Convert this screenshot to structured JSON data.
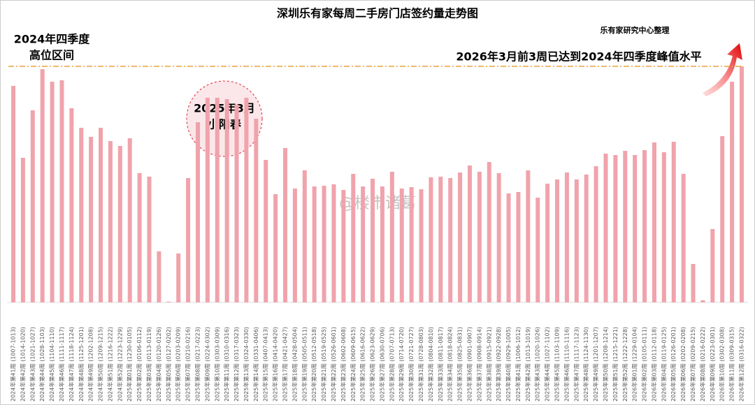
{
  "chart_data": {
    "type": "bar",
    "title": "深圳乐有家每周二手房门店签约量走势图",
    "source": "乐有家研究中心整理",
    "annotations": [
      "2024年四季度",
      "高位区间",
      "2026年3月前3周已达到2024年四季度峰值水平",
      "2025年3月",
      "小阳春",
      "@楼市诸葛"
    ],
    "color": "#f0a3ab",
    "reference_line": 338,
    "reference_color": "#e8a33a",
    "ylim": [
      0,
      345
    ],
    "categories": [
      "2024年第41周 (1007-1013)",
      "2024年第42周 (1014-1020)",
      "2024年第43周 (1021-1027)",
      "2024年第44周 (1028-1103)",
      "2024年第45周 (1104-1110)",
      "2024年第46周 (1111-1117)",
      "2024年第47周 (1118-1124)",
      "2024年第48周 (1125-1201)",
      "2024年第49周 (1202-1208)",
      "2024年第50周 (1209-1215)",
      "2024年第51周 (1216-1222)",
      "2024年第52周 (1223-1229)",
      "2025年第01周 (1230-0105)",
      "2025年第02周 (0106-0112)",
      "2025年第03周 (0113-0119)",
      "2025年第04周 (0120-0126)",
      "2025年第05周 (0127-0202)",
      "2025年第06周 (0203-0209)",
      "2025年第07周 (0210-0216)",
      "2025年第08周 (0217-0223)",
      "2025年第09周 (0224-0302)",
      "2025年第10周 (0303-0309)",
      "2025年第11周 (0310-0316)",
      "2025年第12周 (0317-0323)",
      "2025年第13周 (0324-0330)",
      "2025年第14周 (0331-0406)",
      "2025年第15周 (0407-0413)",
      "2025年第16周 (0414-0420)",
      "2025年第17周 (0421-0427)",
      "2025年第18周 (0428-0504)",
      "2025年第19周 (0505-0511)",
      "2025年第20周 (0512-0518)",
      "2025年第21周 (0519-0525)",
      "2025年第22周 (0526-0601)",
      "2025年第23周 (0602-0608)",
      "2025年第24周 (0609-0615)",
      "2025年第25周 (0616-0622)",
      "2025年第26周 (0623-0629)",
      "2025年第27周 (0630-0706)",
      "2025年第28周 (0707-0713)",
      "2025年第29周 (0714-0720)",
      "2025年第30周 (0721-0727)",
      "2025年第31周 (0728-0803)",
      "2025年第32周 (0804-0810)",
      "2025年第33周 (0811-0817)",
      "2025年第34周 (0818-0824)",
      "2025年第35周 (0825-0831)",
      "2025年第36周 (0901-0907)",
      "2025年第37周 (0908-0914)",
      "2025年第38周 (0915-0921)",
      "2025年第39周 (0922-0928)",
      "2025年第40周 (0929-1005)",
      "2025年第41周 (1006-1012)",
      "2025年第42周 (1013-1019)",
      "2025年第43周 (1020-1026)",
      "2025年第44周 (1027-1102)",
      "2025年第45周 (1103-1109)",
      "2025年第46周 (1110-1116)",
      "2025年第47周 (1117-1123)",
      "2025年第48周 (1124-1130)",
      "2025年第49周 (1201-1207)",
      "2025年第50周 (1208-1214)",
      "2025年第51周 (1215-1221)",
      "2025年第52周 (1222-1228)",
      "2026年第01周 (1229-0104)",
      "2026年第02周 (0105-0111)",
      "2026年第03周 (0112-0118)",
      "2026年第04周 (0119-0125)",
      "2026年第05周 (0126-0201)",
      "2026年第06周 (0202-0208)",
      "2026年第07周 (0209-0215)",
      "2026年第08周 (0216-0222)",
      "2026年第09周 (0223-0301)",
      "2026年第10周 (0302-0308)",
      "2026年第11周 (0309-0315)",
      "2026年第12周 (0316-0322)"
    ],
    "values": [
      310,
      207,
      275,
      334,
      316,
      318,
      278,
      250,
      237,
      250,
      231,
      224,
      235,
      185,
      180,
      73,
      1,
      70,
      178,
      258,
      293,
      293,
      291,
      283,
      293,
      263,
      204,
      155,
      221,
      163,
      189,
      166,
      167,
      169,
      161,
      184,
      166,
      177,
      166,
      187,
      163,
      165,
      162,
      179,
      180,
      178,
      186,
      196,
      187,
      201,
      185,
      156,
      158,
      189,
      150,
      170,
      176,
      186,
      176,
      183,
      195,
      213,
      211,
      217,
      211,
      218,
      229,
      215,
      230,
      184,
      55,
      3,
      105,
      238,
      316,
      338
    ]
  }
}
